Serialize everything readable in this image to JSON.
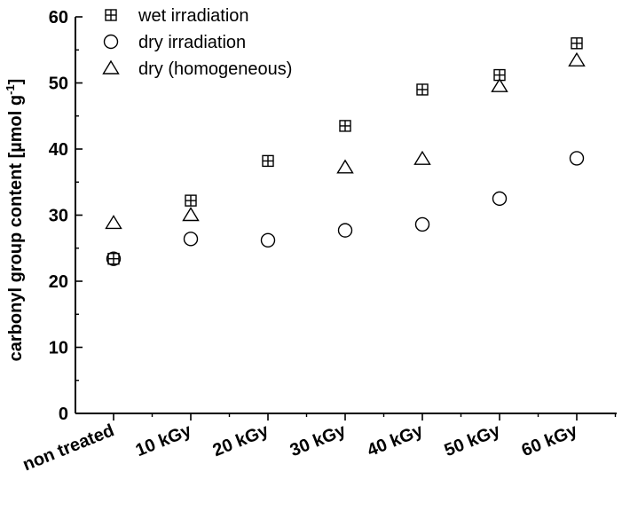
{
  "chart_data": {
    "type": "scatter",
    "categories": [
      "non treated",
      "10 kGy",
      "20 kGy",
      "30 kGy",
      "40 kGy",
      "50 kGy",
      "60 kGy"
    ],
    "ylabel": "carbonyl group content [µmol g",
    "ylabel_sup": "-1",
    "ylabel_end": "]",
    "ylim": [
      0,
      60
    ],
    "yticks": [
      0,
      10,
      20,
      30,
      40,
      50,
      60
    ],
    "legend_position": "top-left",
    "series": [
      {
        "name": "wet irradiation",
        "marker": "boxed-plus",
        "values": [
          23.4,
          32.2,
          38.2,
          43.5,
          49.0,
          51.2,
          56.0
        ]
      },
      {
        "name": "dry irradiation",
        "marker": "circle",
        "values": [
          23.4,
          26.4,
          26.2,
          27.7,
          28.6,
          32.5,
          38.6
        ]
      },
      {
        "name": "dry (homogeneous)",
        "marker": "triangle",
        "values": [
          28.8,
          30.0,
          null,
          37.2,
          38.5,
          49.5,
          53.4
        ]
      }
    ]
  }
}
